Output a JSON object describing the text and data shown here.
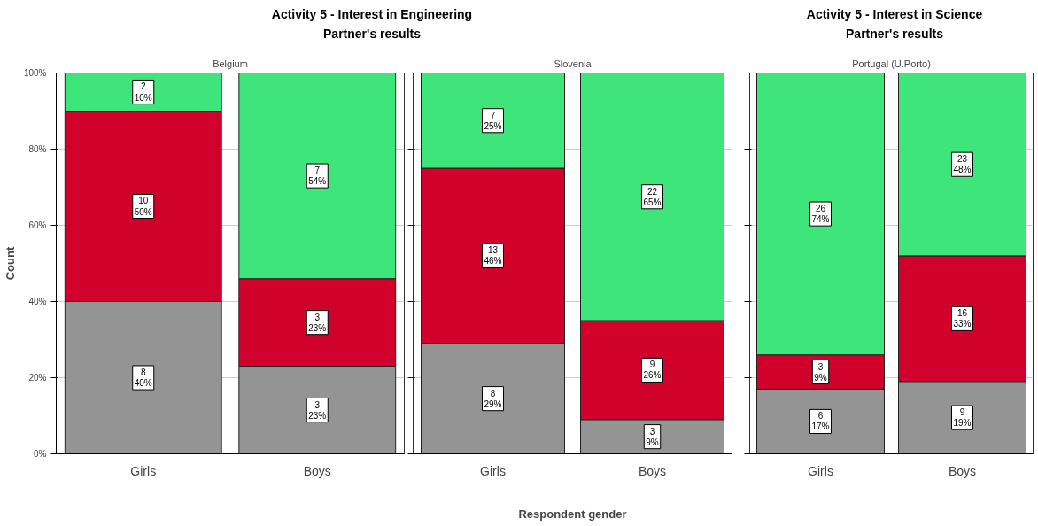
{
  "chart_data": [
    {
      "type": "bar",
      "stacked": true,
      "title": "Activity 5 - Interest in Engineering",
      "subtitle": "Partner's results",
      "annotations": [
        "Belgium"
      ],
      "ylabel": "Count",
      "categories": [
        "Girls",
        "Boys"
      ],
      "ylim": [
        0,
        100
      ],
      "yticks": [
        {
          "value": 0,
          "label": "0%"
        },
        {
          "value": 20,
          "label": "20%"
        },
        {
          "value": 40,
          "label": "40%"
        },
        {
          "value": 60,
          "label": "60%"
        },
        {
          "value": 80,
          "label": "80%"
        },
        {
          "value": 100,
          "label": "100%"
        }
      ],
      "grid": "y",
      "series": [
        {
          "color": "#949494",
          "values": [
            40,
            23
          ],
          "value_labels": [
            "8\n40%",
            "3\n23%"
          ]
        },
        {
          "color": "#d0022b",
          "values": [
            50,
            23
          ],
          "value_labels": [
            "10\n50%",
            "3\n23%"
          ]
        },
        {
          "color": "#3de57a",
          "values": [
            10,
            54
          ],
          "value_labels": [
            "2\n10%",
            "7\n54%"
          ]
        }
      ]
    },
    {
      "type": "bar",
      "stacked": true,
      "annotations": [
        "Slovenia"
      ],
      "xlabel": "Respondent gender",
      "categories": [
        "Girls",
        "Boys"
      ],
      "ylim": [
        0,
        100
      ],
      "yticks": [
        {
          "value": 0,
          "label": null
        },
        {
          "value": 20,
          "label": null
        },
        {
          "value": 40,
          "label": null
        },
        {
          "value": 60,
          "label": null
        },
        {
          "value": 80,
          "label": null
        },
        {
          "value": 100,
          "label": null
        }
      ],
      "grid": "y",
      "tick_labels": "x",
      "series": [
        {
          "color": "#949494",
          "values": [
            29,
            9
          ],
          "value_labels": [
            "8\n29%",
            "3\n9%"
          ]
        },
        {
          "color": "#d0022b",
          "values": [
            46,
            26
          ],
          "value_labels": [
            "13\n46%",
            "9\n26%"
          ]
        },
        {
          "color": "#3de57a",
          "values": [
            25,
            65
          ],
          "value_labels": [
            "7\n25%",
            "22\n65%"
          ]
        }
      ]
    },
    {
      "type": "bar",
      "stacked": true,
      "title": "Activity 5 - Interest in Science",
      "subtitle": "Partner's results",
      "annotations": [
        "Portugal (U.Porto)"
      ],
      "categories": [
        "Girls",
        "Boys"
      ],
      "ylim": [
        0,
        100
      ],
      "yticks": [
        {
          "value": 0,
          "label": null
        },
        {
          "value": 20,
          "label": null
        },
        {
          "value": 40,
          "label": null
        },
        {
          "value": 60,
          "label": null
        },
        {
          "value": 80,
          "label": null
        },
        {
          "value": 100,
          "label": null
        }
      ],
      "grid": "y",
      "tick_labels": "x",
      "series": [
        {
          "color": "#949494",
          "values": [
            17,
            19
          ],
          "value_labels": [
            "6\n17%",
            "9\n19%"
          ]
        },
        {
          "color": "#d0022b",
          "values": [
            9,
            33
          ],
          "value_labels": [
            "3\n9%",
            "16\n33%"
          ]
        },
        {
          "color": "#3de57a",
          "values": [
            74,
            48
          ],
          "value_labels": [
            "26\n74%",
            "23\n48%"
          ]
        }
      ]
    }
  ]
}
